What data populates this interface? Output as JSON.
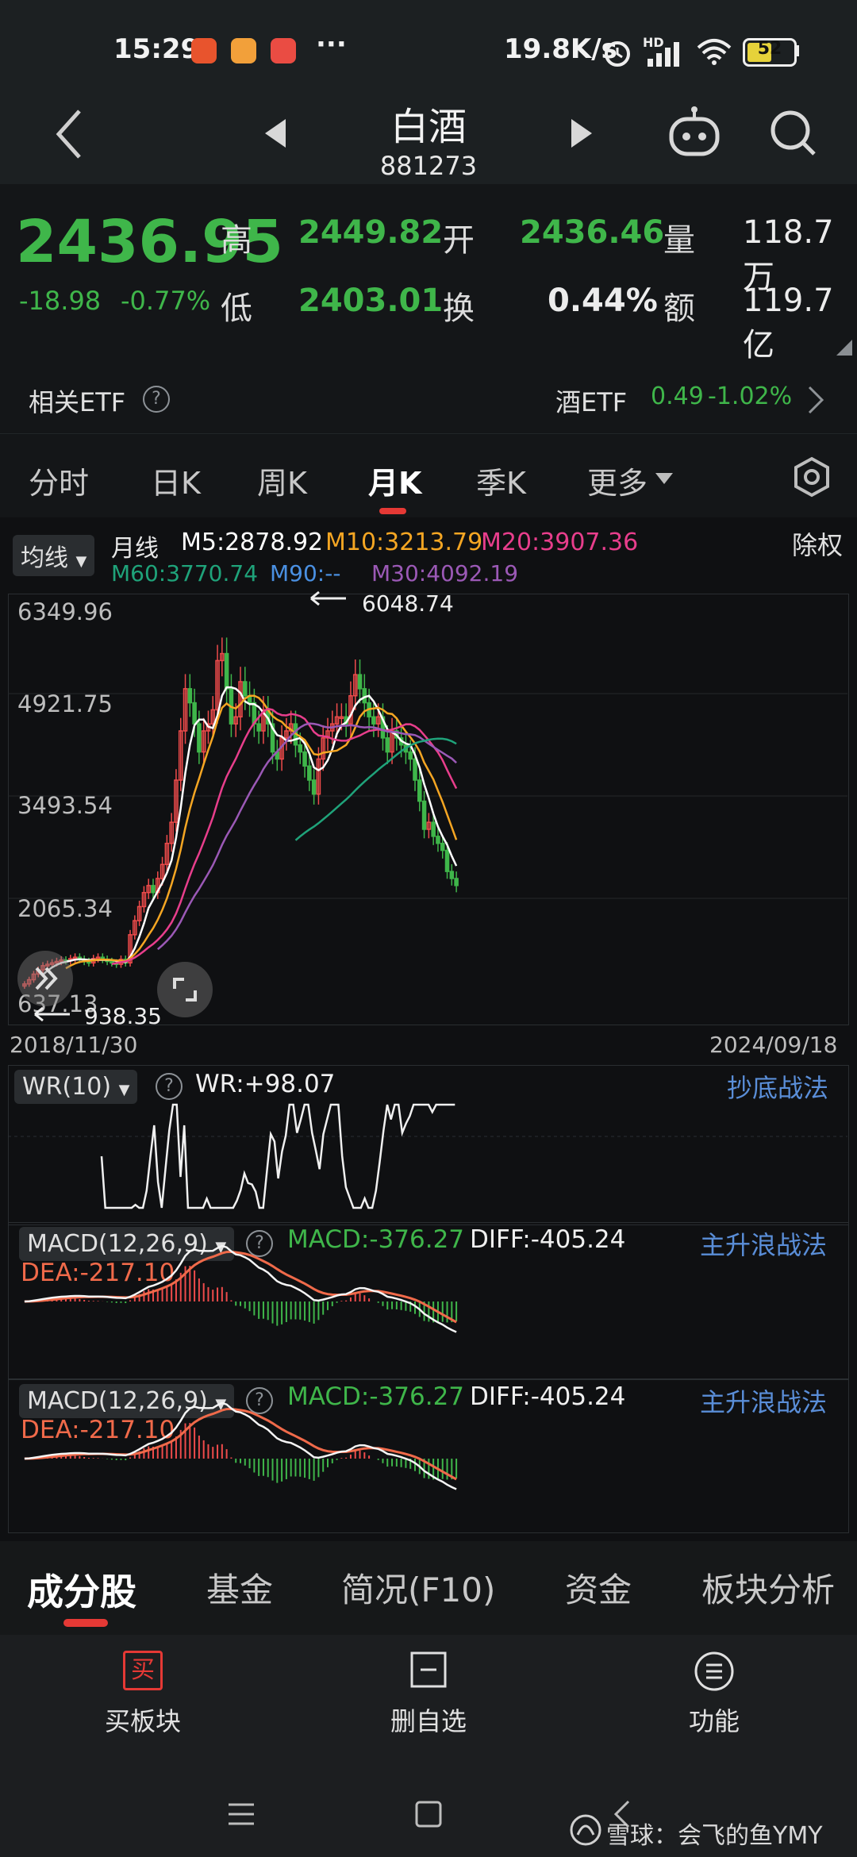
{
  "status_bar": {
    "time": "15:29",
    "network_speed": "19.8K/s",
    "battery": "52",
    "more": "···",
    "hd": "HD"
  },
  "header": {
    "title": "白酒",
    "code": "881273"
  },
  "quote": {
    "price": "2436.95",
    "change": "-18.98",
    "change_pct": "-0.77%",
    "high_label": "高",
    "high": "2449.82",
    "low_label": "低",
    "low": "2403.01",
    "open_label": "开",
    "open": "2436.46",
    "turnover_label": "换",
    "turnover": "0.44%",
    "volume_label": "量",
    "volume": "118.7万",
    "amount_label": "额",
    "amount": "119.7亿"
  },
  "etf": {
    "label": "相关ETF",
    "name": "酒ETF",
    "price": "0.49",
    "change_pct": "-1.02%"
  },
  "period_tabs": [
    "分时",
    "日K",
    "周K",
    "月K",
    "季K",
    "更多"
  ],
  "active_period": "月K",
  "kline": {
    "indicator_dropdown": "均线",
    "series_label": "月线",
    "adjust_label": "除权",
    "ma": {
      "m5": "M5:2878.92",
      "m10": "M10:3213.79",
      "m20": "M20:3907.36",
      "m60": "M60:3770.74",
      "m90": "M90:--",
      "m30": "M30:4092.19"
    },
    "y_ticks": [
      "6349.96",
      "4921.75",
      "3493.54",
      "2065.34",
      "637.13"
    ],
    "high_marker": "6048.74",
    "low_marker": "938.35",
    "start_date": "2018/11/30",
    "end_date": "2024/09/18"
  },
  "wr_panel": {
    "dropdown": "WR(10)",
    "value": "WR:+98.07",
    "strategy": "抄底战法"
  },
  "macd_panel_1": {
    "dropdown": "MACD(12,26,9)",
    "macd": "MACD:-376.27",
    "diff": "DIFF:-405.24",
    "dea": "DEA:-217.10",
    "strategy": "主升浪战法"
  },
  "macd_panel_2": {
    "dropdown": "MACD(12,26,9)",
    "macd": "MACD:-376.27",
    "diff": "DIFF:-405.24",
    "dea": "DEA:-217.10",
    "strategy": "主升浪战法"
  },
  "bottom_tabs": [
    "成分股",
    "基金",
    "简况(F10)",
    "资金",
    "板块分析"
  ],
  "active_bottom_tab": "成分股",
  "actions": {
    "buy_label": "买板块",
    "buy_icon_text": "买",
    "remove_label": "删自选",
    "function_label": "功能"
  },
  "watermark": "雪球：会飞的鱼YMY",
  "colors": {
    "up": "#ef4b4b",
    "down": "#3fb64a",
    "accent": "#e53935",
    "m5": "#ffffff",
    "m10": "#f5a623",
    "m20": "#e83e8c",
    "m60": "#1fa37a",
    "m90": "#4a90e2",
    "m30": "#9b59b6"
  },
  "chart_data": {
    "type": "candlestick",
    "x_start": "2018/11/30",
    "x_end": "2024/09/18",
    "ylim": [
      637.13,
      6349.96
    ],
    "close": [
      1000,
      1060,
      1140,
      1200,
      1260,
      1280,
      1300,
      1320,
      1340,
      1330,
      1360,
      1380,
      1350,
      1320,
      1300,
      1360,
      1380,
      1350,
      1320,
      1300,
      1280,
      1350,
      1300,
      1700,
      1900,
      2100,
      2300,
      2400,
      2300,
      2500,
      2700,
      3000,
      3300,
      3900,
      4600,
      5200,
      5000,
      4700,
      4300,
      4600,
      4700,
      4900,
      5600,
      5700,
      5200,
      4700,
      4800,
      5300,
      5100,
      5000,
      4700,
      4600,
      4900,
      4700,
      4300,
      4200,
      4500,
      4600,
      4700,
      4400,
      4300,
      4100,
      3900,
      3700,
      4200,
      4500,
      4600,
      4700,
      4800,
      4800,
      4700,
      5100,
      5400,
      5200,
      5000,
      4800,
      4700,
      4800,
      4500,
      4300,
      4600,
      4500,
      4400,
      4300,
      4200,
      3900,
      3600,
      3200,
      3300,
      3100,
      3000,
      2900,
      2600,
      2500,
      2400
    ]
  }
}
